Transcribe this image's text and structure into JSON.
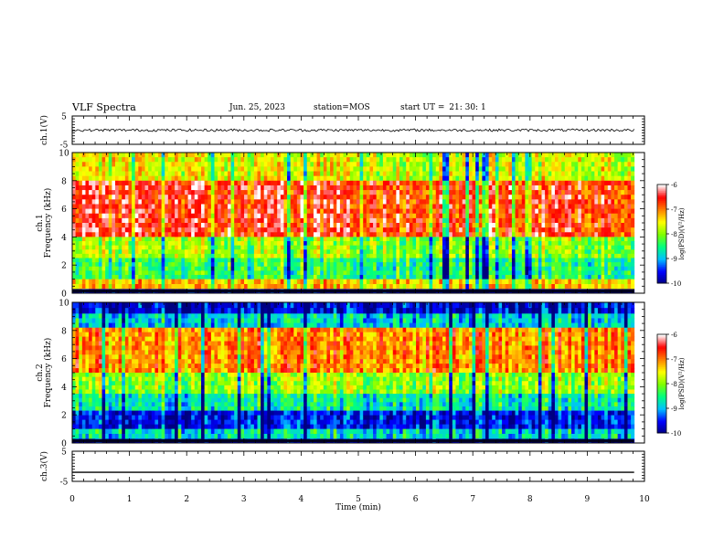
{
  "header": {
    "title": "VLF Spectra",
    "date": "Jun. 25, 2023",
    "station_label": "station=",
    "station": "MOS",
    "start_label": "start UT =",
    "start_time": "21: 30: 1"
  },
  "chart_data": [
    {
      "panel": "ch1-waveform",
      "type": "line",
      "ylabel": "ch.1(V)",
      "ylim": [
        -5,
        5
      ],
      "y_ticks": [
        "-5",
        "5"
      ],
      "xlim": [
        0,
        10
      ],
      "series_level": 0,
      "note_hidden": ""
    },
    {
      "panel": "ch1-spectrogram",
      "type": "heatmap",
      "ylabel_lines": [
        "ch.1",
        "Frequency (kHz)"
      ],
      "ylim": [
        0,
        10
      ],
      "y_ticks": [
        "0",
        "2",
        "4",
        "6",
        "8",
        "10"
      ],
      "xlim": [
        0,
        10
      ],
      "colorbar": {
        "label": "log(PSD)(V²/Hz)",
        "ticks": [
          "-6",
          "-7",
          "-8",
          "-9",
          "-10"
        ],
        "range": [
          -10,
          -6
        ]
      },
      "colors": [
        "#000080",
        "#0000ff",
        "#00c0ff",
        "#00ff80",
        "#80ff00",
        "#ffff00",
        "#ff8000",
        "#ff0000",
        "#ffffff"
      ],
      "bands": [
        {
          "f_range": [
            8.0,
            10.0
          ],
          "level": -7.6
        },
        {
          "f_range": [
            4.0,
            8.0
          ],
          "level": -6.6
        },
        {
          "f_range": [
            2.5,
            4.0
          ],
          "level": -7.9
        },
        {
          "f_range": [
            1.0,
            2.5
          ],
          "level": -8.4
        },
        {
          "f_range": [
            0.3,
            1.0
          ],
          "level": -7.3
        },
        {
          "f_range": [
            0.0,
            0.3
          ],
          "level": -9.8
        }
      ]
    },
    {
      "panel": "ch2-spectrogram",
      "type": "heatmap",
      "ylabel_lines": [
        "ch.2",
        "Frequency (kHz)"
      ],
      "ylim": [
        0,
        10
      ],
      "y_ticks": [
        "0",
        "2",
        "4",
        "6",
        "8",
        "10"
      ],
      "xlim": [
        0,
        10
      ],
      "colorbar": {
        "label": "log(PSD)(V²/Hz)",
        "ticks": [
          "-6",
          "-7",
          "-8",
          "-9",
          "-10"
        ],
        "range": [
          -10,
          -6
        ]
      },
      "colors": [
        "#000080",
        "#0000ff",
        "#00c0ff",
        "#00ff80",
        "#80ff00",
        "#ffff00",
        "#ff8000",
        "#ff0000",
        "#ffffff"
      ],
      "bands": [
        {
          "f_range": [
            9.2,
            10.0
          ],
          "level": -9.6
        },
        {
          "f_range": [
            8.2,
            9.2
          ],
          "level": -8.8
        },
        {
          "f_range": [
            5.0,
            8.2
          ],
          "level": -7.0
        },
        {
          "f_range": [
            3.5,
            5.0
          ],
          "level": -7.9
        },
        {
          "f_range": [
            2.3,
            3.5
          ],
          "level": -8.6
        },
        {
          "f_range": [
            1.0,
            2.3
          ],
          "level": -9.5
        },
        {
          "f_range": [
            0.3,
            1.0
          ],
          "level": -8.7
        },
        {
          "f_range": [
            0.0,
            0.3
          ],
          "level": -9.9
        }
      ]
    },
    {
      "panel": "ch3-waveform",
      "type": "line",
      "ylabel": "ch.3(V)",
      "ylim": [
        -5,
        5
      ],
      "y_ticks": [
        "-5",
        "5"
      ],
      "xlim": [
        0,
        10
      ],
      "series_level": -2
    }
  ],
  "x_axis": {
    "label": "Time (min)",
    "ticks": [
      "0",
      "1",
      "2",
      "3",
      "4",
      "5",
      "6",
      "7",
      "8",
      "9",
      "10"
    ],
    "data_end": 9.82
  }
}
